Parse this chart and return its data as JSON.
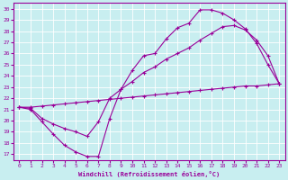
{
  "xlabel": "Windchill (Refroidissement éolien,°C)",
  "bg_color": "#c8eef0",
  "line_color": "#990099",
  "grid_color": "#aadddd",
  "xlim": [
    -0.5,
    23.5
  ],
  "ylim": [
    16.5,
    30.5
  ],
  "xticks": [
    0,
    1,
    2,
    3,
    4,
    5,
    6,
    7,
    8,
    9,
    10,
    11,
    12,
    13,
    14,
    15,
    16,
    17,
    18,
    19,
    20,
    21,
    22,
    23
  ],
  "yticks": [
    17,
    18,
    19,
    20,
    21,
    22,
    23,
    24,
    25,
    26,
    27,
    28,
    29,
    30
  ],
  "line1_x": [
    0,
    1,
    2,
    3,
    4,
    5,
    6,
    7,
    8,
    9,
    10,
    11,
    12,
    13,
    14,
    15,
    16,
    17,
    18,
    19,
    20,
    21,
    22,
    23
  ],
  "line1_y": [
    21.2,
    21.0,
    19.9,
    18.8,
    17.8,
    17.2,
    16.8,
    16.8,
    20.2,
    22.8,
    24.5,
    25.8,
    26.0,
    27.3,
    28.3,
    28.7,
    29.9,
    29.9,
    29.6,
    29.0,
    28.2,
    26.9,
    25.0,
    23.3
  ],
  "line2_x": [
    0,
    1,
    2,
    3,
    4,
    5,
    6,
    7,
    8,
    9,
    10,
    11,
    12,
    13,
    14,
    15,
    16,
    17,
    18,
    19,
    20,
    21,
    22,
    23
  ],
  "line2_y": [
    21.2,
    21.1,
    20.2,
    19.7,
    19.3,
    19.0,
    18.6,
    19.9,
    22.0,
    22.8,
    23.5,
    24.3,
    24.8,
    25.5,
    26.0,
    26.5,
    27.2,
    27.8,
    28.4,
    28.5,
    28.1,
    27.2,
    25.8,
    23.3
  ],
  "line3_x": [
    0,
    1,
    2,
    3,
    4,
    5,
    6,
    7,
    8,
    9,
    10,
    11,
    12,
    13,
    14,
    15,
    16,
    17,
    18,
    19,
    20,
    21,
    22,
    23
  ],
  "line3_y": [
    21.2,
    21.2,
    21.3,
    21.4,
    21.5,
    21.6,
    21.7,
    21.8,
    21.9,
    22.0,
    22.1,
    22.2,
    22.3,
    22.4,
    22.5,
    22.6,
    22.7,
    22.8,
    22.9,
    23.0,
    23.1,
    23.1,
    23.2,
    23.3
  ]
}
